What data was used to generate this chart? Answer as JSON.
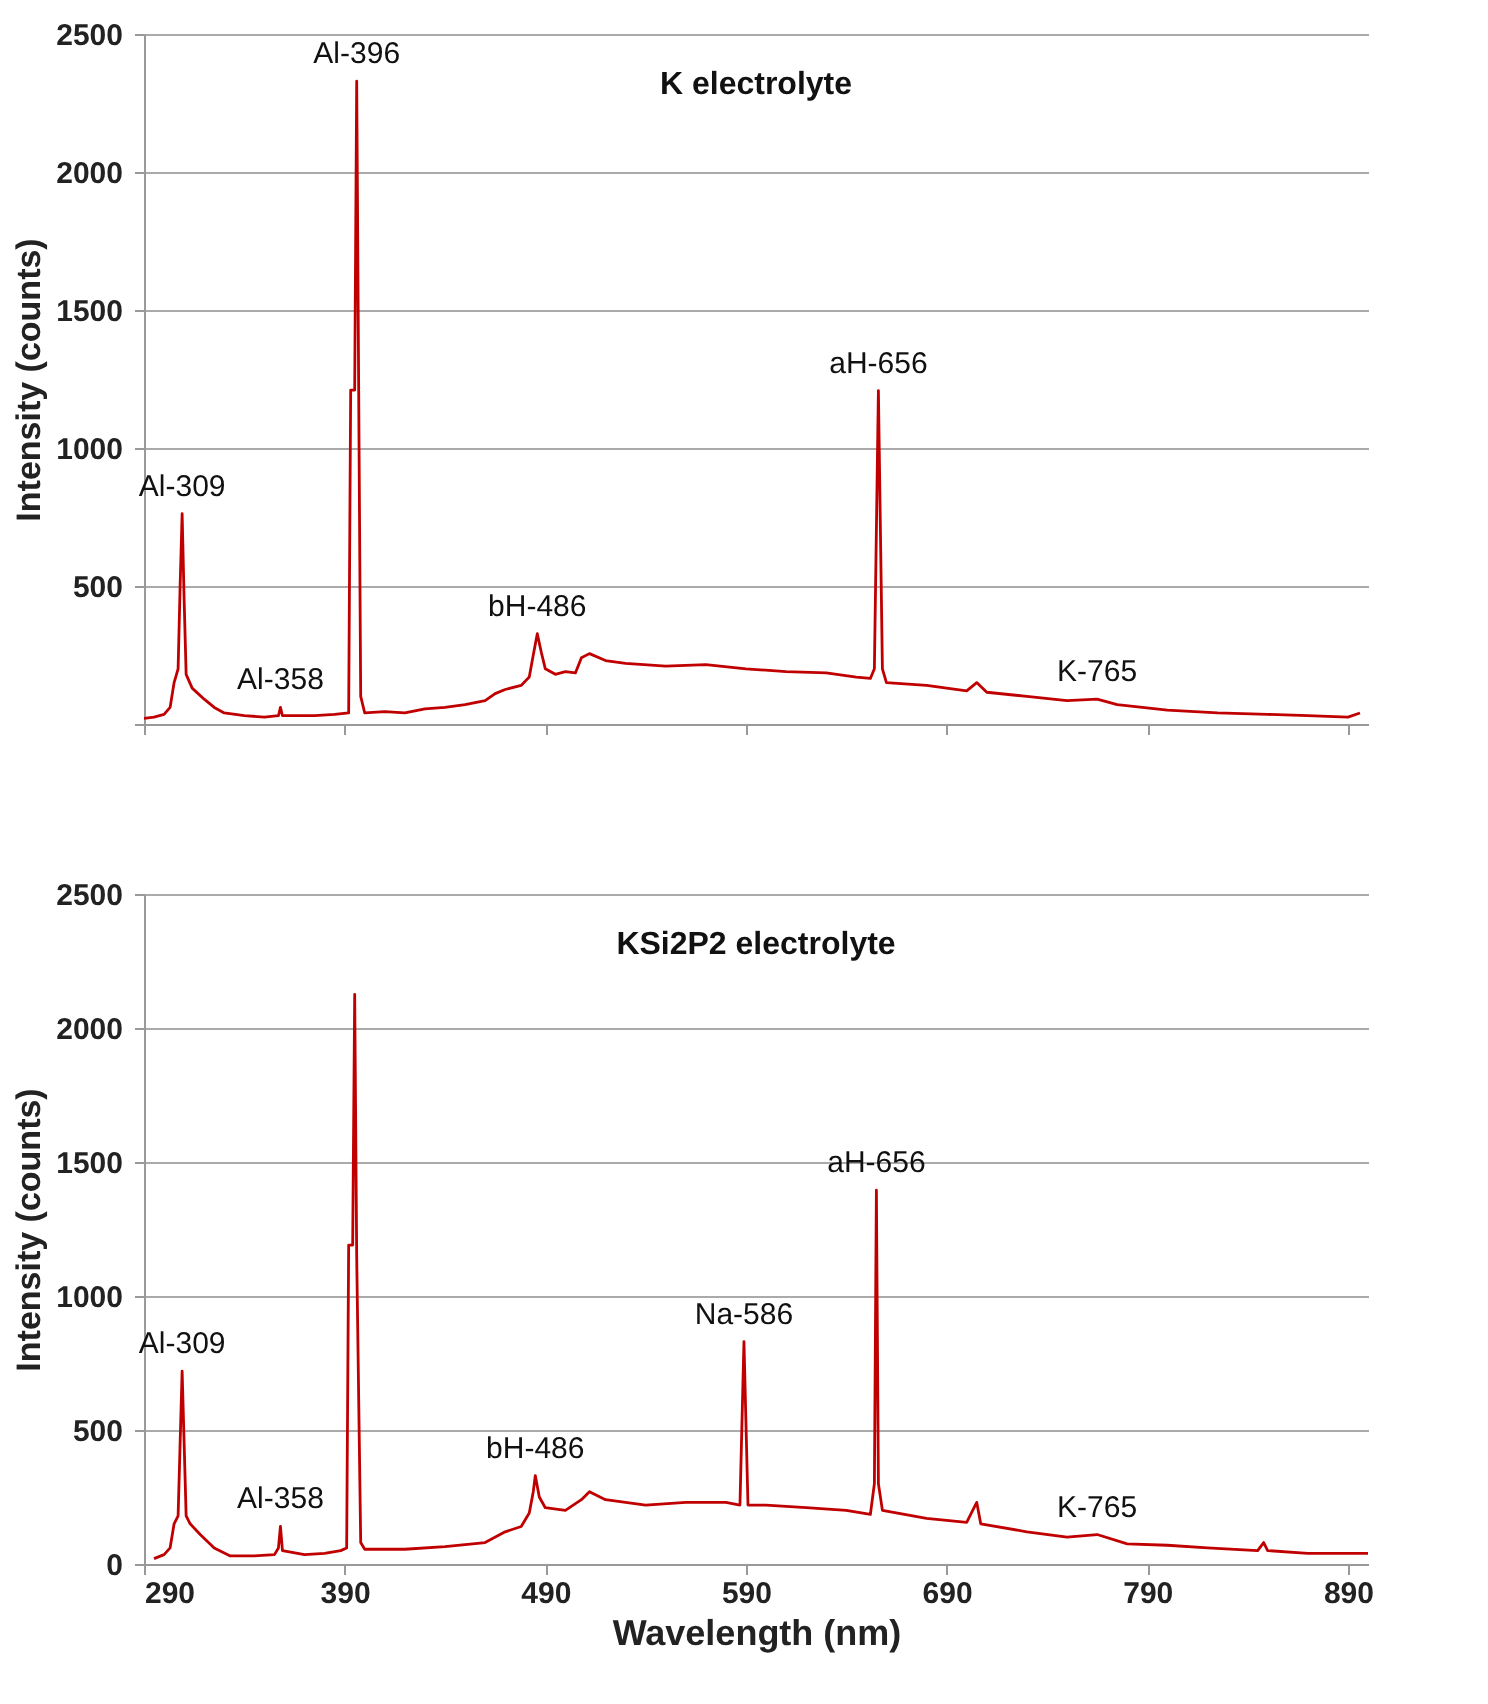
{
  "chart_data": [
    {
      "type": "line",
      "title": "K electrolyte",
      "ylabel": "Intensity (counts)",
      "xlim": [
        290,
        900
      ],
      "xticks": [
        {
          "value": 290,
          "label": null
        },
        {
          "value": 390,
          "label": null
        },
        {
          "value": 490,
          "label": null
        },
        {
          "value": 590,
          "label": null
        },
        {
          "value": 690,
          "label": null
        },
        {
          "value": 790,
          "label": null
        },
        {
          "value": 890,
          "label": null
        }
      ],
      "ylim": [
        0,
        2500
      ],
      "yticks": [
        {
          "value": 0,
          "label": null
        },
        500,
        1000,
        1500,
        2000,
        2500
      ],
      "tick_labels": "y",
      "grid": "y",
      "line_style": "solid",
      "x": [
        290,
        295,
        300,
        303,
        305,
        307,
        308,
        309,
        310,
        311,
        314,
        320,
        325,
        330,
        340,
        350,
        357,
        358,
        359,
        375,
        385,
        392,
        393,
        395,
        396,
        397,
        398,
        400,
        410,
        420,
        430,
        440,
        450,
        460,
        465,
        470,
        478,
        482,
        484,
        486,
        488,
        490,
        495,
        500,
        505,
        508,
        512,
        520,
        530,
        550,
        570,
        590,
        610,
        630,
        645,
        652,
        654,
        656,
        658,
        660,
        680,
        700,
        705,
        710,
        730,
        750,
        765,
        775,
        800,
        825,
        850,
        870,
        890,
        896
      ],
      "series": [
        {
          "color": "#c00000",
          "values": [
            20,
            25,
            35,
            60,
            150,
            200,
            500,
            762,
            450,
            180,
            130,
            90,
            60,
            40,
            30,
            25,
            30,
            60,
            30,
            30,
            35,
            40,
            1210,
            1210,
            2329,
            1200,
            100,
            40,
            45,
            40,
            55,
            60,
            70,
            85,
            110,
            125,
            140,
            170,
            250,
            327,
            260,
            200,
            180,
            190,
            185,
            240,
            255,
            230,
            220,
            210,
            215,
            200,
            190,
            185,
            170,
            165,
            200,
            1208,
            200,
            150,
            140,
            120,
            150,
            115,
            100,
            85,
            90,
            70,
            50,
            40,
            35,
            30,
            25,
            40
          ]
        }
      ],
      "annotations": [
        {
          "text": "Al-309",
          "x": 309,
          "y": 762
        },
        {
          "text": "Al-358",
          "x": 358,
          "y": 60
        },
        {
          "text": "Al-396",
          "x": 396,
          "y": 2329
        },
        {
          "text": "bH-486",
          "x": 486,
          "y": 327
        },
        {
          "text": "aH-656",
          "x": 656,
          "y": 1208
        },
        {
          "text": "K-765",
          "x": 765,
          "y": 90
        }
      ]
    },
    {
      "type": "line",
      "title": "KSi2P2 electrolyte",
      "xlabel": "Wavelength (nm)",
      "ylabel": "Intensity (counts)",
      "xlim": [
        290,
        900
      ],
      "xticks": [
        290,
        390,
        490,
        590,
        690,
        790,
        890
      ],
      "ylim": [
        0,
        2500
      ],
      "yticks": [
        0,
        500,
        1000,
        1500,
        2000,
        2500
      ],
      "grid": "y",
      "line_style": "solid",
      "x": [
        295,
        300,
        303,
        305,
        307,
        308,
        309,
        310,
        311,
        313,
        318,
        325,
        333,
        345,
        355,
        357,
        358,
        359,
        370,
        380,
        388,
        391,
        392,
        394,
        395,
        396,
        398,
        400,
        420,
        440,
        460,
        470,
        478,
        482,
        484,
        485,
        487,
        490,
        500,
        508,
        512,
        520,
        540,
        560,
        580,
        587,
        589,
        591,
        600,
        620,
        640,
        652,
        654,
        655,
        656,
        658,
        680,
        700,
        705,
        707,
        730,
        750,
        765,
        780,
        800,
        820,
        845,
        848,
        850,
        870,
        900
      ],
      "series": [
        {
          "color": "#c00000",
          "values": [
            20,
            35,
            60,
            150,
            180,
            450,
            720,
            450,
            180,
            150,
            110,
            60,
            30,
            30,
            35,
            60,
            140,
            50,
            35,
            40,
            50,
            60,
            1190,
            1190,
            2125,
            1150,
            80,
            55,
            55,
            65,
            80,
            120,
            140,
            190,
            270,
            330,
            250,
            210,
            200,
            240,
            270,
            240,
            220,
            230,
            230,
            220,
            830,
            220,
            220,
            210,
            200,
            185,
            300,
            1395,
            300,
            200,
            170,
            155,
            230,
            150,
            120,
            100,
            110,
            75,
            70,
            60,
            50,
            80,
            50,
            40,
            40
          ]
        }
      ],
      "annotations": [
        {
          "text": "Al-309",
          "x": 309,
          "y": 720
        },
        {
          "text": "Al-358",
          "x": 358,
          "y": 140
        },
        {
          "text": "bH-486",
          "x": 485,
          "y": 330
        },
        {
          "text": "Na-586",
          "x": 589,
          "y": 830
        },
        {
          "text": "aH-656",
          "x": 655,
          "y": 1395
        },
        {
          "text": "K-765",
          "x": 765,
          "y": 110
        }
      ]
    }
  ]
}
